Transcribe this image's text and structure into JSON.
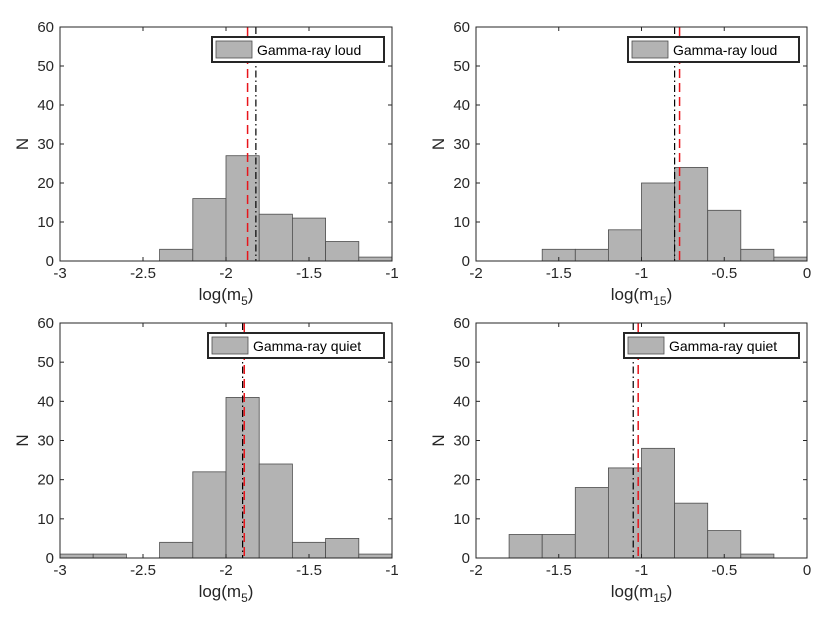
{
  "chart_data": [
    {
      "type": "bar",
      "title": "",
      "legend": "Gamma-ray loud",
      "xlabel": "log(m",
      "xlabel_sub": "5",
      "xlabel_end": ")",
      "ylabel": "N",
      "xlim": [
        -3,
        -1
      ],
      "ylim": [
        0,
        60
      ],
      "xticks": [
        -3,
        -2.5,
        -2,
        -1.5,
        -1
      ],
      "xtick_labels": [
        "-3",
        "-2.5",
        "-2",
        "-1.5",
        "-1"
      ],
      "yticks": [
        0,
        10,
        20,
        30,
        40,
        50,
        60
      ],
      "ytick_labels": [
        "0",
        "10",
        "20",
        "30",
        "40",
        "50",
        "60"
      ],
      "bins": [
        {
          "x0": -2.4,
          "x1": -2.2,
          "count": 3
        },
        {
          "x0": -2.2,
          "x1": -2.0,
          "count": 16
        },
        {
          "x0": -2.0,
          "x1": -1.8,
          "count": 27
        },
        {
          "x0": -1.8,
          "x1": -1.6,
          "count": 12
        },
        {
          "x0": -1.6,
          "x1": -1.4,
          "count": 11
        },
        {
          "x0": -1.4,
          "x1": -1.2,
          "count": 5
        },
        {
          "x0": -1.2,
          "x1": -1.0,
          "count": 1
        }
      ],
      "red_dashed_line": -1.87,
      "black_dashdot_line": -1.82
    },
    {
      "type": "bar",
      "title": "",
      "legend": "Gamma-ray loud",
      "xlabel": "log(m",
      "xlabel_sub": "15",
      "xlabel_end": ")",
      "ylabel": "N",
      "xlim": [
        -2,
        0
      ],
      "ylim": [
        0,
        60
      ],
      "xticks": [
        -2,
        -1.5,
        -1,
        -0.5,
        0
      ],
      "xtick_labels": [
        "-2",
        "-1.5",
        "-1",
        "-0.5",
        "0"
      ],
      "yticks": [
        0,
        10,
        20,
        30,
        40,
        50,
        60
      ],
      "ytick_labels": [
        "0",
        "10",
        "20",
        "30",
        "40",
        "50",
        "60"
      ],
      "bins": [
        {
          "x0": -1.6,
          "x1": -1.4,
          "count": 3
        },
        {
          "x0": -1.4,
          "x1": -1.2,
          "count": 3
        },
        {
          "x0": -1.2,
          "x1": -1.0,
          "count": 8
        },
        {
          "x0": -1.0,
          "x1": -0.8,
          "count": 20
        },
        {
          "x0": -0.8,
          "x1": -0.6,
          "count": 24
        },
        {
          "x0": -0.6,
          "x1": -0.4,
          "count": 13
        },
        {
          "x0": -0.4,
          "x1": -0.2,
          "count": 3
        },
        {
          "x0": -0.2,
          "x1": 0.0,
          "count": 1
        }
      ],
      "red_dashed_line": -0.77,
      "black_dashdot_line": -0.8
    },
    {
      "type": "bar",
      "title": "",
      "legend": "Gamma-ray quiet",
      "xlabel": "log(m",
      "xlabel_sub": "5",
      "xlabel_end": ")",
      "ylabel": "N",
      "xlim": [
        -3,
        -1
      ],
      "ylim": [
        0,
        60
      ],
      "xticks": [
        -3,
        -2.5,
        -2,
        -1.5,
        -1
      ],
      "xtick_labels": [
        "-3",
        "-2.5",
        "-2",
        "-1.5",
        "-1"
      ],
      "yticks": [
        0,
        10,
        20,
        30,
        40,
        50,
        60
      ],
      "ytick_labels": [
        "0",
        "10",
        "20",
        "30",
        "40",
        "50",
        "60"
      ],
      "bins": [
        {
          "x0": -3.0,
          "x1": -2.8,
          "count": 1
        },
        {
          "x0": -2.8,
          "x1": -2.6,
          "count": 1
        },
        {
          "x0": -2.4,
          "x1": -2.2,
          "count": 4
        },
        {
          "x0": -2.2,
          "x1": -2.0,
          "count": 22
        },
        {
          "x0": -2.0,
          "x1": -1.8,
          "count": 41
        },
        {
          "x0": -1.8,
          "x1": -1.6,
          "count": 24
        },
        {
          "x0": -1.6,
          "x1": -1.4,
          "count": 4
        },
        {
          "x0": -1.4,
          "x1": -1.2,
          "count": 5
        },
        {
          "x0": -1.2,
          "x1": -1.0,
          "count": 1
        }
      ],
      "red_dashed_line": -1.89,
      "black_dashdot_line": -1.9
    },
    {
      "type": "bar",
      "title": "",
      "legend": "Gamma-ray quiet",
      "xlabel": "log(m",
      "xlabel_sub": "15",
      "xlabel_end": ")",
      "ylabel": "N",
      "xlim": [
        -2,
        0
      ],
      "ylim": [
        0,
        60
      ],
      "xticks": [
        -2,
        -1.5,
        -1,
        -0.5,
        0
      ],
      "xtick_labels": [
        "-2",
        "-1.5",
        "-1",
        "-0.5",
        "0"
      ],
      "yticks": [
        0,
        10,
        20,
        30,
        40,
        50,
        60
      ],
      "ytick_labels": [
        "0",
        "10",
        "20",
        "30",
        "40",
        "50",
        "60"
      ],
      "bins": [
        {
          "x0": -1.8,
          "x1": -1.6,
          "count": 6
        },
        {
          "x0": -1.6,
          "x1": -1.4,
          "count": 6
        },
        {
          "x0": -1.4,
          "x1": -1.2,
          "count": 18
        },
        {
          "x0": -1.2,
          "x1": -1.0,
          "count": 23
        },
        {
          "x0": -1.0,
          "x1": -0.8,
          "count": 28
        },
        {
          "x0": -0.8,
          "x1": -0.6,
          "count": 14
        },
        {
          "x0": -0.6,
          "x1": -0.4,
          "count": 7
        },
        {
          "x0": -0.4,
          "x1": -0.2,
          "count": 1
        }
      ],
      "red_dashed_line": -1.02,
      "black_dashdot_line": -1.05
    }
  ],
  "style": {
    "bar_fill": "#b3b3b3",
    "bar_edge": "#4d4d4d",
    "red_line": "#e8151b",
    "black_line": "#000000"
  }
}
